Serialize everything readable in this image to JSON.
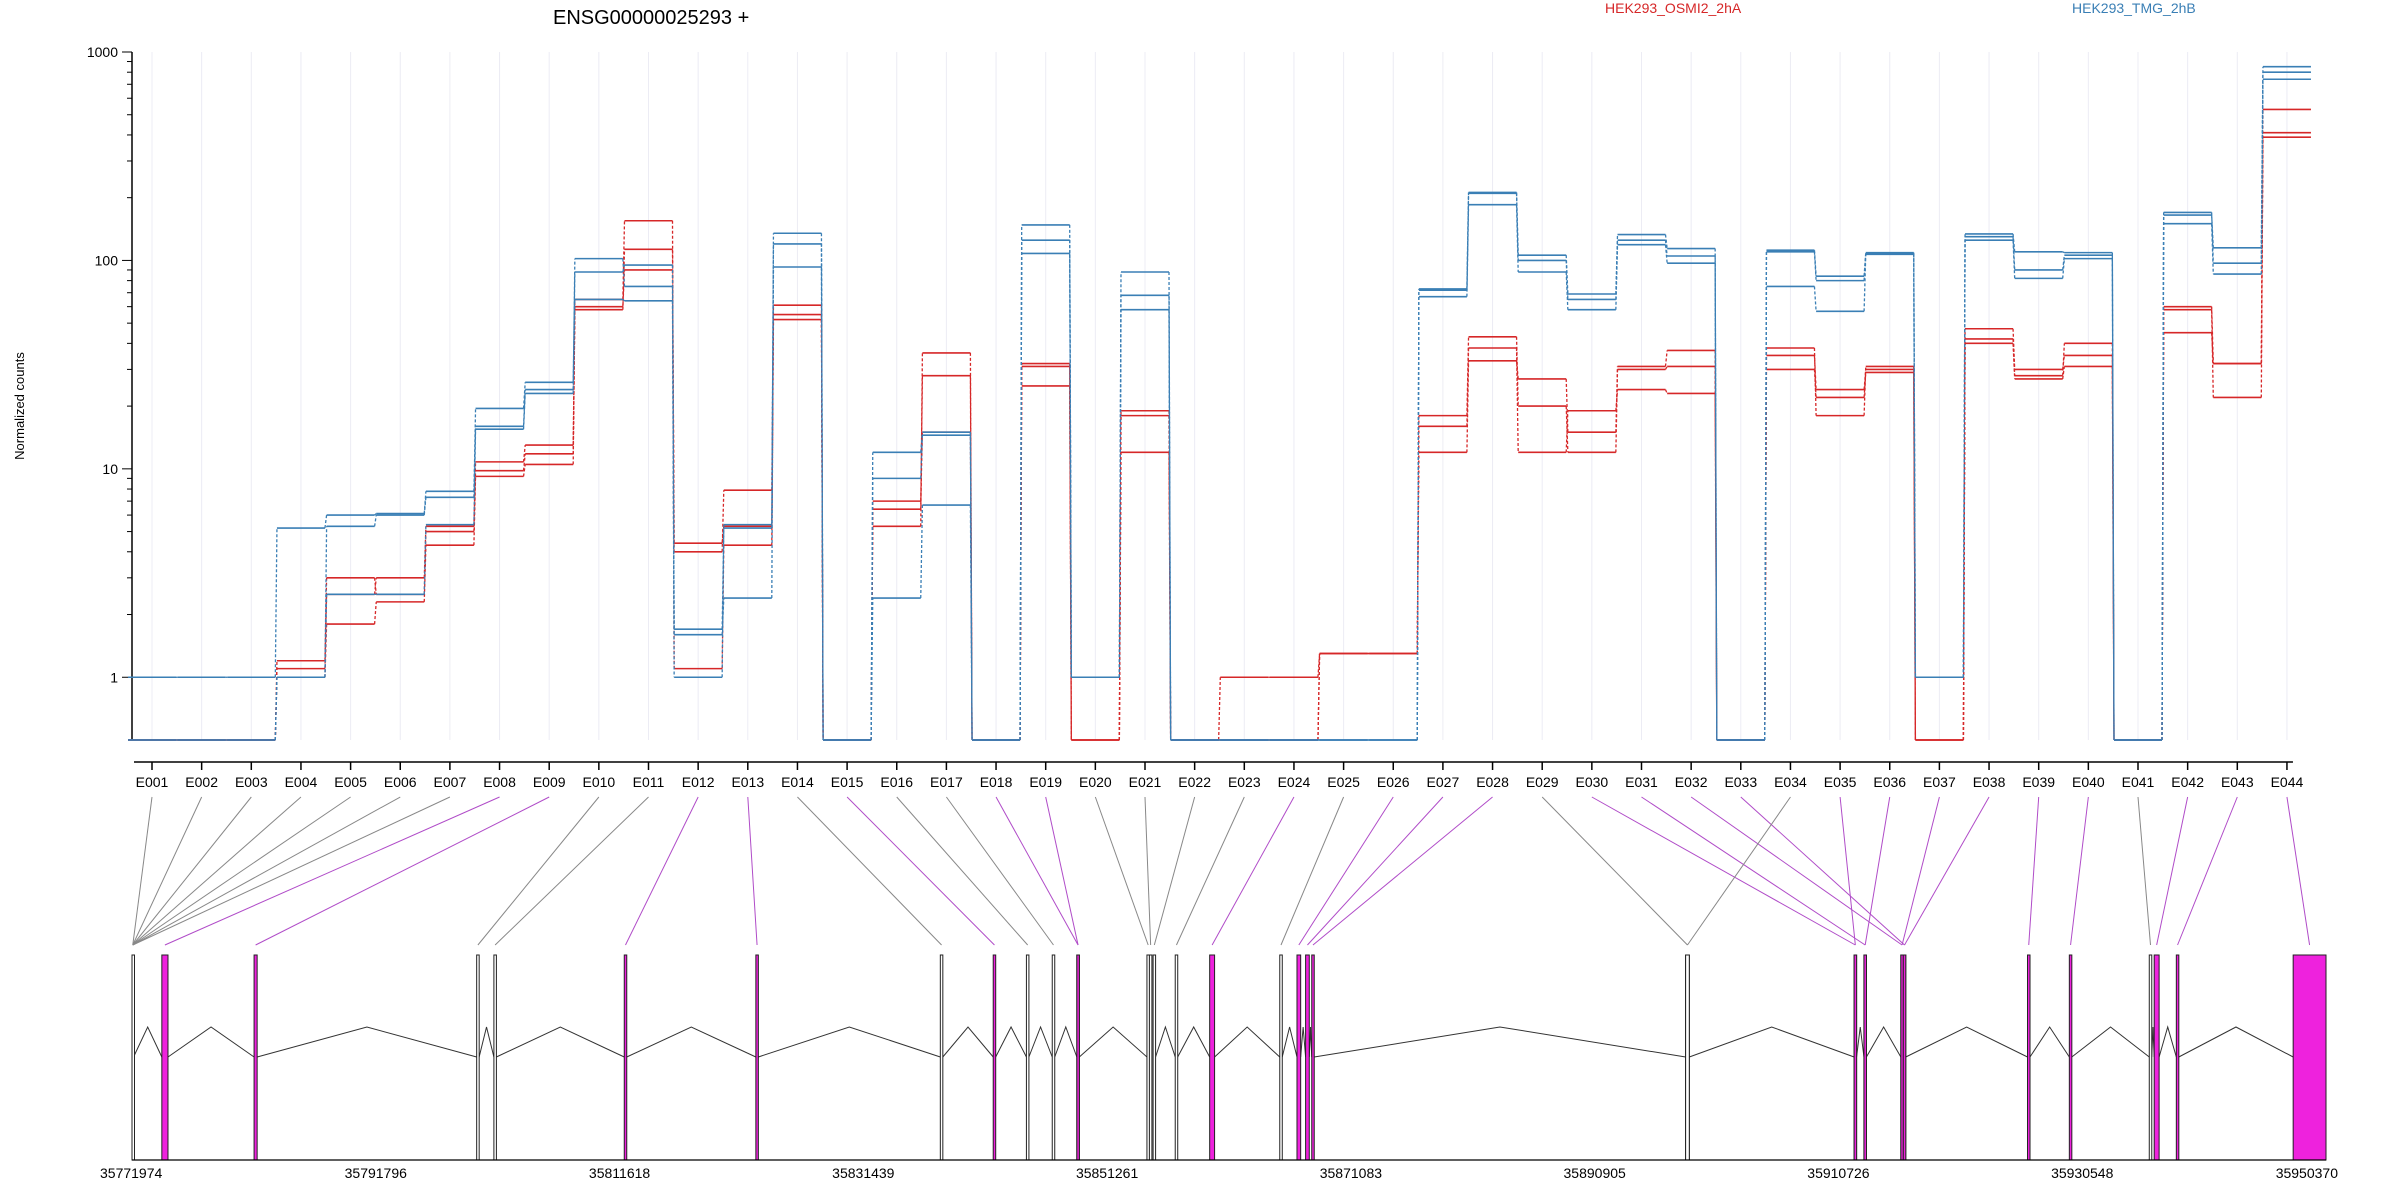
{
  "chart_data": {
    "type": "line",
    "title": "ENSG00000025293 +",
    "ylabel": "Normalized counts",
    "xlabel": "",
    "y_scale": "log",
    "ylim": [
      0.5,
      1000
    ],
    "y_ticks": [
      {
        "label": "1",
        "value": 1
      },
      {
        "label": "10",
        "value": 10
      },
      {
        "label": "100",
        "value": 100
      },
      {
        "label": "1000",
        "value": 1000
      }
    ],
    "grid": true,
    "legend_position": "top",
    "categories": [
      "E001",
      "E002",
      "E003",
      "E004",
      "E005",
      "E006",
      "E007",
      "E008",
      "E009",
      "E010",
      "E011",
      "E012",
      "E013",
      "E014",
      "E015",
      "E016",
      "E017",
      "E018",
      "E019",
      "E020",
      "E021",
      "E022",
      "E023",
      "E024",
      "E025",
      "E026",
      "E027",
      "E028",
      "E029",
      "E030",
      "E031",
      "E032",
      "E033",
      "E034",
      "E035",
      "E036",
      "E037",
      "E038",
      "E039",
      "E040",
      "E041",
      "E042",
      "E043",
      "E044"
    ],
    "conditions": [
      {
        "name": "HEK293_OSMI2_2hA",
        "color": "#d62728"
      },
      {
        "name": "HEK293_TMG_2hB",
        "color": "#3a7fb5"
      }
    ],
    "series": [
      {
        "name": "",
        "condition": 0,
        "color": "#d62728",
        "values": [
          0.5,
          0.5,
          0.5,
          1.0,
          1.8,
          2.3,
          4.3,
          9.2,
          10.5,
          58,
          113,
          4.0,
          7.9,
          61,
          0.5,
          7.0,
          15,
          0.5,
          31,
          0.5,
          19,
          0.5,
          0.5,
          0.5,
          1.3,
          1.3,
          12,
          33,
          27,
          15,
          31,
          37,
          0.5,
          38,
          18,
          31,
          0.5,
          47,
          30,
          35,
          0.5,
          45,
          32,
          530
        ]
      },
      {
        "name": "",
        "condition": 0,
        "color": "#d62728",
        "values": [
          0.5,
          0.5,
          0.5,
          1.1,
          2.5,
          3.0,
          5.3,
          10.8,
          13.0,
          65,
          155,
          1.1,
          4.3,
          52,
          0.5,
          5.3,
          36,
          0.5,
          25,
          0.5,
          12,
          0.5,
          1.0,
          1.0,
          1.3,
          1.3,
          18,
          43,
          20,
          12,
          30,
          31,
          0.5,
          30,
          22,
          29,
          0.5,
          40,
          27,
          31,
          0.5,
          58,
          22,
          390
        ]
      },
      {
        "name": "",
        "condition": 0,
        "color": "#d62728",
        "values": [
          0.5,
          0.5,
          0.5,
          1.2,
          3.0,
          2.5,
          5.0,
          9.8,
          11.8,
          60,
          90,
          4.4,
          5.3,
          55,
          0.5,
          6.4,
          28,
          0.5,
          32,
          0.5,
          18,
          0.5,
          0.5,
          0.5,
          1.3,
          1.3,
          16,
          38,
          12,
          19,
          24,
          23,
          0.5,
          35,
          24,
          30,
          0.5,
          42,
          28,
          40,
          0.5,
          60,
          32,
          410
        ]
      },
      {
        "name": "",
        "condition": 1,
        "color": "#3a7fb5",
        "values": [
          0.5,
          0.5,
          0.5,
          1.0,
          2.5,
          2.5,
          5.4,
          15.5,
          23,
          65,
          64,
          1.6,
          2.4,
          93,
          0.5,
          2.4,
          6.7,
          0.5,
          108,
          1.0,
          58,
          0.5,
          0.5,
          0.5,
          0.5,
          0.5,
          67,
          185,
          88,
          58,
          119,
          97,
          0.5,
          75,
          57,
          107,
          1.0,
          125,
          82,
          102,
          0.5,
          150,
          86,
          740
        ]
      },
      {
        "name": "",
        "condition": 1,
        "color": "#3a7fb5",
        "values": [
          0.5,
          0.5,
          0.5,
          1.0,
          5.3,
          6.0,
          7.3,
          19.5,
          26,
          88,
          95,
          1.7,
          5.2,
          120,
          0.5,
          9.0,
          14.5,
          0.5,
          148,
          1.0,
          88,
          0.5,
          0.5,
          0.5,
          0.5,
          0.5,
          73,
          212,
          106,
          69,
          133,
          114,
          0.5,
          112,
          84,
          109,
          1.0,
          134,
          110,
          109,
          0.5,
          170,
          97,
          850
        ]
      },
      {
        "name": "",
        "condition": 1,
        "color": "#3a7fb5",
        "values": [
          1.0,
          1.0,
          1.0,
          5.2,
          6.0,
          6.1,
          7.8,
          16.0,
          24,
          102,
          75,
          1.0,
          5.4,
          135,
          0.5,
          12.0,
          15.0,
          0.5,
          125,
          1.0,
          68,
          0.5,
          0.5,
          0.5,
          0.5,
          0.5,
          72,
          210,
          100,
          65,
          125,
          105,
          0.5,
          110,
          80,
          108,
          1.0,
          130,
          90,
          106,
          0.5,
          165,
          115,
          800
        ]
      }
    ],
    "gene_model": {
      "coord_min": 35771974,
      "coord_max": 35950370,
      "coord_ticks": [
        "35771974",
        "35791796",
        "35811618",
        "35831439",
        "35851261",
        "35871083",
        "35890905",
        "35910726",
        "35930548",
        "35950370"
      ],
      "exon_bins": [
        {
          "id": "E001",
          "start": 35771974,
          "end": 35772100,
          "type": "constitutive"
        },
        {
          "id": "E002",
          "start": 35771974,
          "end": 35772100,
          "type": "constitutive"
        },
        {
          "id": "E003",
          "start": 35771974,
          "end": 35772100,
          "type": "constitutive"
        },
        {
          "id": "E004",
          "start": 35771974,
          "end": 35772100,
          "type": "constitutive"
        },
        {
          "id": "E005",
          "start": 35771974,
          "end": 35772100,
          "type": "constitutive"
        },
        {
          "id": "E006",
          "start": 35771974,
          "end": 35772100,
          "type": "constitutive"
        },
        {
          "id": "E007",
          "start": 35771974,
          "end": 35772100,
          "type": "constitutive"
        },
        {
          "id": "E008",
          "start": 35774400,
          "end": 35774900,
          "type": "variable"
        },
        {
          "id": "E009",
          "start": 35781900,
          "end": 35782150,
          "type": "variable"
        },
        {
          "id": "E010",
          "start": 35800000,
          "end": 35800200,
          "type": "constitutive"
        },
        {
          "id": "E011",
          "start": 35801400,
          "end": 35801600,
          "type": "constitutive"
        },
        {
          "id": "E012",
          "start": 35812000,
          "end": 35812200,
          "type": "variable"
        },
        {
          "id": "E013",
          "start": 35822700,
          "end": 35822900,
          "type": "variable"
        },
        {
          "id": "E014",
          "start": 35837700,
          "end": 35837900,
          "type": "constitutive"
        },
        {
          "id": "E015",
          "start": 35842000,
          "end": 35842200,
          "type": "variable"
        },
        {
          "id": "E016",
          "start": 35844700,
          "end": 35844900,
          "type": "constitutive"
        },
        {
          "id": "E017",
          "start": 35846800,
          "end": 35847000,
          "type": "constitutive"
        },
        {
          "id": "E018",
          "start": 35848800,
          "end": 35849000,
          "type": "variable"
        },
        {
          "id": "E019",
          "start": 35848800,
          "end": 35849000,
          "type": "variable"
        },
        {
          "id": "E020",
          "start": 35854500,
          "end": 35854700,
          "type": "constitutive"
        },
        {
          "id": "E021",
          "start": 35854700,
          "end": 35854900,
          "type": "constitutive"
        },
        {
          "id": "E022",
          "start": 35855000,
          "end": 35855200,
          "type": "constitutive"
        },
        {
          "id": "E023",
          "start": 35856800,
          "end": 35857000,
          "type": "constitutive"
        },
        {
          "id": "E024",
          "start": 35859600,
          "end": 35860000,
          "type": "variable"
        },
        {
          "id": "E025",
          "start": 35865300,
          "end": 35865500,
          "type": "constitutive"
        },
        {
          "id": "E026",
          "start": 35866700,
          "end": 35867000,
          "type": "variable"
        },
        {
          "id": "E027",
          "start": 35867400,
          "end": 35867700,
          "type": "variable"
        },
        {
          "id": "E028",
          "start": 35867900,
          "end": 35868100,
          "type": "variable"
        },
        {
          "id": "E029",
          "start": 35898300,
          "end": 35898600,
          "type": "constitutive"
        },
        {
          "id": "E030",
          "start": 35912000,
          "end": 35912200,
          "type": "variable"
        },
        {
          "id": "E031",
          "start": 35912800,
          "end": 35913000,
          "type": "variable"
        },
        {
          "id": "E032",
          "start": 35915800,
          "end": 35916000,
          "type": "variable"
        },
        {
          "id": "E033",
          "start": 35916000,
          "end": 35916200,
          "type": "variable"
        },
        {
          "id": "E034",
          "start": 35898300,
          "end": 35898600,
          "type": "constitutive"
        },
        {
          "id": "E035",
          "start": 35912000,
          "end": 35912200,
          "type": "variable"
        },
        {
          "id": "E036",
          "start": 35912800,
          "end": 35913000,
          "type": "variable"
        },
        {
          "id": "E037",
          "start": 35915800,
          "end": 35916000,
          "type": "variable"
        },
        {
          "id": "E038",
          "start": 35916000,
          "end": 35916200,
          "type": "variable"
        },
        {
          "id": "E039",
          "start": 35926100,
          "end": 35926300,
          "type": "variable"
        },
        {
          "id": "E040",
          "start": 35929500,
          "end": 35929700,
          "type": "variable"
        },
        {
          "id": "E041",
          "start": 35936000,
          "end": 35936200,
          "type": "constitutive"
        },
        {
          "id": "E042",
          "start": 35936400,
          "end": 35936800,
          "type": "variable"
        },
        {
          "id": "E043",
          "start": 35938200,
          "end": 35938400,
          "type": "variable"
        },
        {
          "id": "E044",
          "start": 35947700,
          "end": 35950370,
          "type": "variable"
        }
      ]
    }
  }
}
